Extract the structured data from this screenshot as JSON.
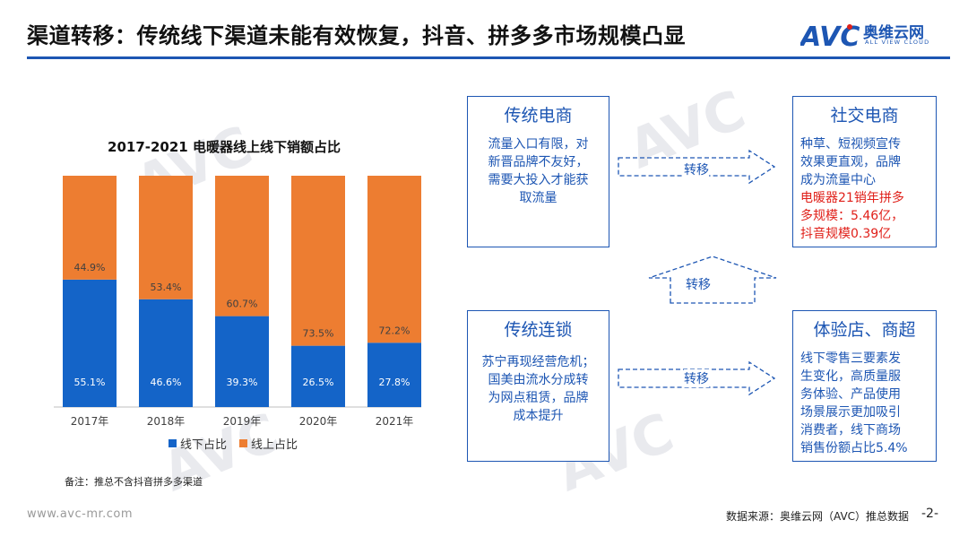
{
  "header": {
    "title": "渠道转移：传统线下渠道未能有效恢复，抖音、拼多多市场规模凸显",
    "logo_mark": "AVC",
    "logo_cn": "奥维云网",
    "logo_en": "ALL VIEW CLOUD"
  },
  "colors": {
    "brand_blue": "#1d56b3",
    "offline_blue": "#1464c8",
    "online_orange": "#ed7d31",
    "highlight_red": "#e0201a"
  },
  "chart_data": {
    "type": "bar",
    "stacked": true,
    "title": "2017-2021 电暖器线上线下销额占比",
    "categories": [
      "2017年",
      "2018年",
      "2019年",
      "2020年",
      "2021年"
    ],
    "series": [
      {
        "name": "线下占比",
        "values": [
          55.1,
          46.6,
          39.3,
          26.5,
          27.8
        ],
        "labels": [
          "55.1%",
          "46.6%",
          "39.3%",
          "26.5%",
          "27.8%"
        ]
      },
      {
        "name": "线上占比",
        "values": [
          44.9,
          53.4,
          60.7,
          73.5,
          72.2
        ],
        "labels": [
          "44.9%",
          "53.4%",
          "60.7%",
          "73.5%",
          "72.2%"
        ]
      }
    ],
    "ylim": [
      0,
      100
    ],
    "legend": "bottom"
  },
  "note": "备注：推总不含抖音拼多多渠道",
  "boxes": {
    "trad_ecom": {
      "title": "传统电商",
      "lines": [
        "流量入口有限，对",
        "新晋品牌不友好，",
        "需要大投入才能获",
        "取流量"
      ]
    },
    "social": {
      "title": "社交电商",
      "lines": [
        "种草、短视频宣传",
        "效果更直观，品牌",
        "成为流量中心"
      ],
      "red_lines": [
        "电暖器21销年拼多",
        "多规模：5.46亿，",
        "抖音规模0.39亿"
      ]
    },
    "chain": {
      "title": "传统连锁",
      "lines": [
        "苏宁再现经营危机；",
        "国美由流水分成转",
        "为网点租赁，品牌",
        "成本提升"
      ]
    },
    "store": {
      "title": "体验店、商超",
      "lines": [
        "线下零售三要素发",
        "生变化，高质量服",
        "务体验、产品使用",
        "场景展示更加吸引",
        "消费者，线下商场",
        "销售份额占比5.4%"
      ]
    }
  },
  "arrows": {
    "top": "转移",
    "middle": "转移",
    "bottom": "转移"
  },
  "footer": {
    "website": "www.avc-mr.com",
    "source": "数据来源：奥维云网（AVC）推总数据",
    "page": "-2-"
  }
}
